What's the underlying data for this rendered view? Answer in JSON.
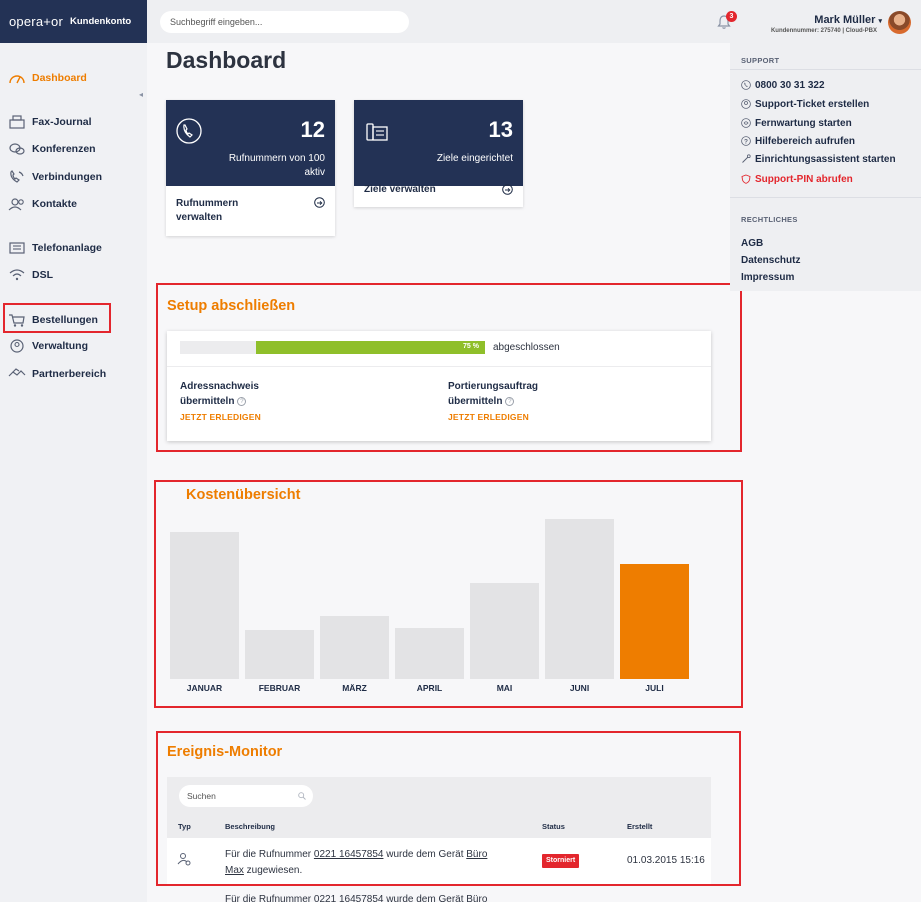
{
  "brand": {
    "logo": "opera+or",
    "subtitle": "Kundenkonto"
  },
  "search": {
    "placeholder": "Suchbegriff eingeben..."
  },
  "notifications": {
    "count": "3"
  },
  "user": {
    "name": "Mark Müller",
    "meta": "Kundennummer: 275740 | Cloud-PBX"
  },
  "sidebar": {
    "items": [
      {
        "label": "Dashboard",
        "icon": "gauge-icon",
        "active": true
      },
      {
        "label": "Fax-Journal",
        "icon": "fax-icon"
      },
      {
        "label": "Konferenzen",
        "icon": "chat-bubbles-icon"
      },
      {
        "label": "Verbindungen",
        "icon": "phone-calls-icon"
      },
      {
        "label": "Kontakte",
        "icon": "contacts-icon"
      },
      {
        "label": "Telefonanlage",
        "icon": "phone-system-icon"
      },
      {
        "label": "DSL",
        "icon": "wifi-icon"
      },
      {
        "label": "Bestellungen",
        "icon": "cart-icon"
      },
      {
        "label": "Verwaltung",
        "icon": "user-circle-icon"
      },
      {
        "label": "Partnerbereich",
        "icon": "handshake-icon"
      }
    ]
  },
  "main": {
    "title": "Dashboard",
    "cards": [
      {
        "number": "12",
        "label_line1": "Rufnummern von 100",
        "label_line2": "aktiv",
        "action_line1": "Rufnummern",
        "action_line2": "verwalten",
        "icon": "phone-icon"
      },
      {
        "number": "13",
        "label_line1": "Ziele eingerichtet",
        "label_line2": "",
        "action_line1": "Ziele verwalten",
        "action_line2": "",
        "icon": "desk-phone-icon"
      }
    ],
    "setup": {
      "title": "Setup abschließen",
      "progress": 75,
      "progress_label": "75 %",
      "progress_text": "abgeschlossen",
      "tasks": [
        {
          "line1": "Adressnachweis",
          "line2": "übermitteln",
          "link": "JETZT ERLEDIGEN"
        },
        {
          "line1": "Portierungsauftrag",
          "line2": "übermitteln",
          "link": "JETZT ERLEDIGEN"
        }
      ]
    },
    "costs": {
      "title": "Kostenübersicht"
    },
    "events": {
      "title": "Ereignis-Monitor",
      "search_placeholder": "Suchen",
      "columns": {
        "type": "Typ",
        "description": "Beschreibung",
        "status": "Status",
        "created": "Erstellt"
      },
      "rows": [
        {
          "pre": "Für die Rufnummer ",
          "number": "0221 16457854",
          "mid": " wurde dem Gerät ",
          "device1": "Büro",
          "device2": "Max",
          "post": " zugewiesen.",
          "status": "Storniert",
          "date": "01.03.2015 15:16"
        },
        {
          "pre": "Für die Rufnummer ",
          "number": "0221 16457854",
          "mid": " wurde dem Gerät ",
          "device1": "Büro",
          "device2": "",
          "post": "",
          "status": "",
          "date": ""
        }
      ]
    }
  },
  "chart_data": {
    "type": "bar",
    "categories": [
      "JANUAR",
      "FEBRUAR",
      "MÄRZ",
      "APRIL",
      "MAI",
      "JUNI",
      "JULI"
    ],
    "values": [
      147,
      49,
      63,
      51,
      96,
      160,
      115
    ],
    "highlight_index": 6,
    "title": "Kostenübersicht",
    "xlabel": "",
    "ylabel": "",
    "ylim": [
      0,
      160
    ],
    "grid": false,
    "colors": {
      "default": "#e3e3e5",
      "current": "#ee7d00"
    }
  },
  "support": {
    "heading": "SUPPORT",
    "items": [
      {
        "label": "0800 30 31 322",
        "icon": "phone-icon"
      },
      {
        "label": "Support-Ticket erstellen",
        "icon": "user-circle-icon"
      },
      {
        "label": "Fernwartung starten",
        "icon": "remote-icon"
      },
      {
        "label": "Hilfebereich aufrufen",
        "icon": "help-icon"
      },
      {
        "label": "Einrichtungsassistent starten",
        "icon": "wand-icon"
      },
      {
        "label": "Support-PIN abrufen",
        "icon": "shield-icon",
        "danger": true
      }
    ]
  },
  "legal": {
    "heading": "RECHTLICHES",
    "items": [
      "AGB",
      "Datenschutz",
      "Impressum"
    ]
  },
  "colors": {
    "navy": "#233255",
    "accent": "#ee7d00",
    "progress": "#8fbf2a",
    "danger": "#e3262d"
  }
}
